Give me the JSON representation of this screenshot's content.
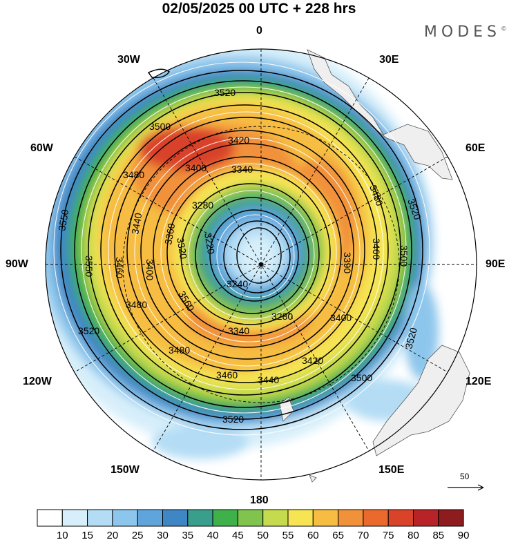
{
  "title": "02/05/2025  00 UTC  + 228 hrs",
  "brand": "MODES",
  "brand_mark": "©",
  "meridian_labels": {
    "top": "0",
    "bottom": "180",
    "left": "90W",
    "right": "90E",
    "w30": "30W",
    "e30": "30E",
    "w60": "60W",
    "e60": "60E",
    "w120": "120W",
    "e120": "120E",
    "w150": "150W",
    "e150": "150E"
  },
  "reference_vector": {
    "label": "50"
  },
  "colorbar": {
    "levels": [
      10,
      15,
      20,
      25,
      30,
      35,
      40,
      45,
      50,
      55,
      60,
      65,
      70,
      75,
      80,
      85,
      90
    ],
    "colors": [
      "#ffffff",
      "#d7effa",
      "#b4ddf5",
      "#8dc6ec",
      "#5fa5dc",
      "#3f86c4",
      "#3a9e8c",
      "#3fb14a",
      "#80c34d",
      "#c6da4d",
      "#f6e453",
      "#f6bd42",
      "#f1913a",
      "#ea6a2d",
      "#d9432a",
      "#b72327",
      "#8e1b1e"
    ]
  },
  "contour_labels": [
    "3520",
    "3500",
    "3480",
    "3440",
    "3420",
    "3400",
    "3360",
    "3340",
    "3280",
    "3240",
    "3220",
    "3320",
    "3550",
    "3560",
    "3460",
    "3390"
  ]
}
